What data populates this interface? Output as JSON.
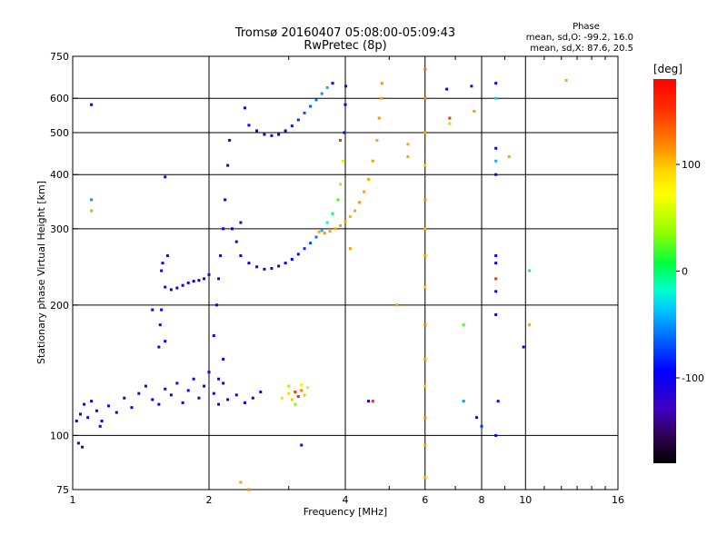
{
  "chart_data": {
    "type": "scatter",
    "title": "Tromsø 20160407 05:08:00-05:09:43",
    "subtitle": "RwPretec (8p)",
    "xlabel": "Frequency [MHz]",
    "ylabel": "Stationary phase Virtual Height [km]",
    "x_scale": "log",
    "y_scale": "log",
    "xlim": [
      1,
      16
    ],
    "ylim": [
      75,
      750
    ],
    "x_ticks": [
      1,
      2,
      4,
      6,
      8,
      10,
      16
    ],
    "y_ticks": [
      75,
      100,
      200,
      300,
      400,
      500,
      600,
      750
    ],
    "x_gridlines": [
      2,
      4,
      6,
      8,
      10
    ],
    "y_gridlines": [
      100,
      200,
      300,
      400,
      500,
      600
    ],
    "phase_stats": {
      "heading": "Phase",
      "line_o": "mean, sd,O: -99.2, 16.0",
      "line_x": "mean, sd,X:  87.6, 20.5"
    },
    "colorbar": {
      "label": "[deg]",
      "ticks": [
        100,
        0,
        -100
      ],
      "range": [
        -180,
        180
      ]
    },
    "series": [
      {
        "points": [
          [
            1.02,
            108,
            -100
          ],
          [
            1.04,
            112,
            -105
          ],
          [
            1.06,
            118,
            -95
          ],
          [
            1.08,
            110,
            -110
          ],
          [
            1.1,
            120,
            -100
          ],
          [
            1.13,
            114,
            -102
          ],
          [
            1.16,
            108,
            -98
          ],
          [
            1.2,
            117,
            -105
          ],
          [
            1.25,
            113,
            -100
          ],
          [
            1.3,
            122,
            -110
          ],
          [
            1.35,
            116,
            -95
          ],
          [
            1.4,
            125,
            -100
          ],
          [
            1.45,
            130,
            -105
          ],
          [
            1.5,
            121,
            -100
          ],
          [
            1.55,
            118,
            -95
          ],
          [
            1.6,
            128,
            -108
          ],
          [
            1.65,
            124,
            -100
          ],
          [
            1.7,
            132,
            -102
          ],
          [
            1.75,
            119,
            -97
          ],
          [
            1.8,
            127,
            -105
          ],
          [
            1.85,
            135,
            -100
          ],
          [
            1.9,
            122,
            -112
          ],
          [
            1.95,
            130,
            -100
          ],
          [
            2.0,
            140,
            -105
          ],
          [
            2.05,
            125,
            -98
          ],
          [
            2.1,
            118,
            -100
          ],
          [
            2.15,
            132,
            -110
          ],
          [
            2.2,
            121,
            -104
          ],
          [
            2.3,
            124,
            -100
          ],
          [
            2.4,
            119,
            -95
          ],
          [
            2.5,
            122,
            -105
          ],
          [
            2.6,
            126,
            -100
          ],
          [
            1.03,
            96,
            -110
          ],
          [
            1.05,
            94,
            -115
          ],
          [
            1.15,
            105,
            -108
          ]
        ]
      },
      {
        "points": [
          [
            1.6,
            220,
            -100
          ],
          [
            1.65,
            217,
            -103
          ],
          [
            1.7,
            219,
            -100
          ],
          [
            1.75,
            222,
            -98
          ],
          [
            1.8,
            225,
            -105
          ],
          [
            1.85,
            227,
            -100
          ],
          [
            1.9,
            228,
            -102
          ],
          [
            1.95,
            230,
            -100
          ],
          [
            2.0,
            235,
            -108
          ],
          [
            1.58,
            250,
            -100
          ],
          [
            1.62,
            260,
            -105
          ],
          [
            1.57,
            240,
            -100
          ],
          [
            1.55,
            160,
            -110
          ],
          [
            1.56,
            180,
            -105
          ],
          [
            1.57,
            195,
            -100
          ]
        ]
      },
      {
        "points": [
          [
            2.05,
            170,
            -105
          ],
          [
            2.08,
            200,
            -100
          ],
          [
            2.1,
            230,
            -110
          ],
          [
            2.12,
            260,
            -100
          ],
          [
            2.15,
            300,
            -105
          ],
          [
            2.17,
            350,
            -100
          ],
          [
            2.2,
            420,
            -98
          ],
          [
            2.22,
            480,
            -102
          ],
          [
            2.15,
            150,
            -100
          ],
          [
            2.1,
            135,
            -108
          ],
          [
            2.25,
            300,
            -100
          ],
          [
            2.3,
            280,
            -95
          ],
          [
            2.35,
            310,
            -100
          ]
        ]
      },
      {
        "points": [
          [
            2.35,
            260,
            -100
          ],
          [
            2.45,
            250,
            -103
          ],
          [
            2.55,
            245,
            -105
          ],
          [
            2.65,
            242,
            -100
          ],
          [
            2.75,
            243,
            -110
          ],
          [
            2.85,
            246,
            -105
          ],
          [
            2.95,
            250,
            -100
          ],
          [
            3.05,
            255,
            -95
          ],
          [
            3.15,
            262,
            -90
          ],
          [
            3.25,
            270,
            -80
          ],
          [
            3.35,
            278,
            -70
          ],
          [
            3.45,
            287,
            -60
          ],
          [
            3.55,
            297,
            -40
          ],
          [
            3.65,
            310,
            -20
          ],
          [
            3.75,
            325,
            0
          ],
          [
            3.85,
            350,
            20
          ],
          [
            3.9,
            380,
            40
          ],
          [
            3.95,
            430,
            60
          ],
          [
            3.98,
            500,
            -100
          ],
          [
            4.0,
            580,
            -100
          ],
          [
            4.01,
            640,
            -100
          ]
        ]
      },
      {
        "points": [
          [
            2.45,
            520,
            -100
          ],
          [
            2.55,
            505,
            -105
          ],
          [
            2.65,
            495,
            -110
          ],
          [
            2.75,
            492,
            -100
          ],
          [
            2.85,
            495,
            -98
          ],
          [
            2.95,
            505,
            -95
          ],
          [
            3.05,
            518,
            -90
          ],
          [
            3.15,
            535,
            -80
          ],
          [
            3.25,
            555,
            -70
          ],
          [
            3.35,
            575,
            -65
          ],
          [
            3.45,
            595,
            -60
          ],
          [
            3.55,
            615,
            -50
          ],
          [
            3.65,
            635,
            -40
          ],
          [
            3.75,
            650,
            -100
          ],
          [
            2.4,
            570,
            -100
          ]
        ]
      },
      {
        "points": [
          [
            3.5,
            295,
            110
          ],
          [
            3.6,
            293,
            115
          ],
          [
            3.7,
            296,
            110
          ],
          [
            3.8,
            300,
            108
          ],
          [
            3.9,
            305,
            112
          ],
          [
            4.0,
            312,
            110
          ],
          [
            4.1,
            320,
            105
          ],
          [
            4.2,
            330,
            110
          ],
          [
            4.3,
            345,
            115
          ],
          [
            4.4,
            365,
            110
          ],
          [
            4.5,
            390,
            108
          ],
          [
            4.6,
            430,
            112
          ],
          [
            4.7,
            480,
            110
          ],
          [
            4.75,
            540,
            115
          ],
          [
            4.8,
            600,
            110
          ],
          [
            4.82,
            650,
            112
          ]
        ]
      },
      {
        "points": [
          [
            2.9,
            122,
            90
          ],
          [
            3.0,
            125,
            95
          ],
          [
            3.05,
            121,
            100
          ],
          [
            3.1,
            126,
            150
          ],
          [
            3.15,
            123,
            160
          ],
          [
            3.2,
            127,
            120
          ],
          [
            3.25,
            124,
            100
          ],
          [
            3.3,
            129,
            90
          ],
          [
            3.0,
            130,
            40
          ],
          [
            3.2,
            131,
            80
          ],
          [
            3.1,
            118,
            30
          ]
        ]
      },
      {
        "points": [
          [
            6.0,
            700,
            130
          ],
          [
            6.0,
            600,
            120
          ],
          [
            6.0,
            500,
            110
          ],
          [
            6.0,
            420,
            100
          ],
          [
            6.0,
            350,
            115
          ],
          [
            6.0,
            300,
            105
          ],
          [
            6.0,
            260,
            110
          ],
          [
            6.0,
            220,
            100
          ],
          [
            6.0,
            180,
            120
          ],
          [
            6.0,
            150,
            110
          ],
          [
            6.0,
            130,
            100
          ],
          [
            6.0,
            110,
            115
          ],
          [
            6.0,
            95,
            110
          ],
          [
            6.0,
            80,
            105
          ]
        ]
      },
      {
        "points": [
          [
            8.6,
            650,
            -100
          ],
          [
            8.6,
            600,
            -30
          ],
          [
            8.6,
            460,
            -100
          ],
          [
            8.6,
            430,
            -40
          ],
          [
            8.6,
            400,
            -100
          ],
          [
            8.6,
            260,
            -100
          ],
          [
            8.6,
            250,
            -100
          ],
          [
            8.6,
            230,
            150
          ],
          [
            8.6,
            215,
            -100
          ],
          [
            8.6,
            190,
            -100
          ],
          [
            8.7,
            120,
            -100
          ],
          [
            8.6,
            100,
            -100
          ]
        ]
      },
      {
        "points": [
          [
            1.1,
            580,
            -100
          ],
          [
            1.1,
            350,
            -50
          ],
          [
            1.1,
            330,
            110
          ],
          [
            1.6,
            395,
            -110
          ],
          [
            3.9,
            480,
            150
          ],
          [
            4.1,
            270,
            110
          ],
          [
            4.5,
            120,
            -100
          ],
          [
            4.6,
            120,
            160
          ],
          [
            5.2,
            200,
            110
          ],
          [
            5.5,
            470,
            110
          ],
          [
            5.5,
            440,
            110
          ],
          [
            6.7,
            630,
            -100
          ],
          [
            6.8,
            540,
            150
          ],
          [
            6.8,
            525,
            40
          ],
          [
            7.3,
            180,
            20
          ],
          [
            7.3,
            120,
            -50
          ],
          [
            7.6,
            640,
            -120
          ],
          [
            7.7,
            560,
            110
          ],
          [
            7.8,
            110,
            -110
          ],
          [
            9.2,
            440,
            110
          ],
          [
            10.2,
            180,
            110
          ],
          [
            12.3,
            660,
            110
          ],
          [
            9.9,
            160,
            -100
          ],
          [
            10.2,
            240,
            0
          ],
          [
            8.0,
            105,
            -80
          ],
          [
            3.2,
            95,
            -110
          ],
          [
            2.35,
            78,
            110
          ],
          [
            2.45,
            75,
            120
          ],
          [
            1.6,
            165,
            -100
          ],
          [
            1.5,
            195,
            -100
          ]
        ]
      }
    ]
  }
}
